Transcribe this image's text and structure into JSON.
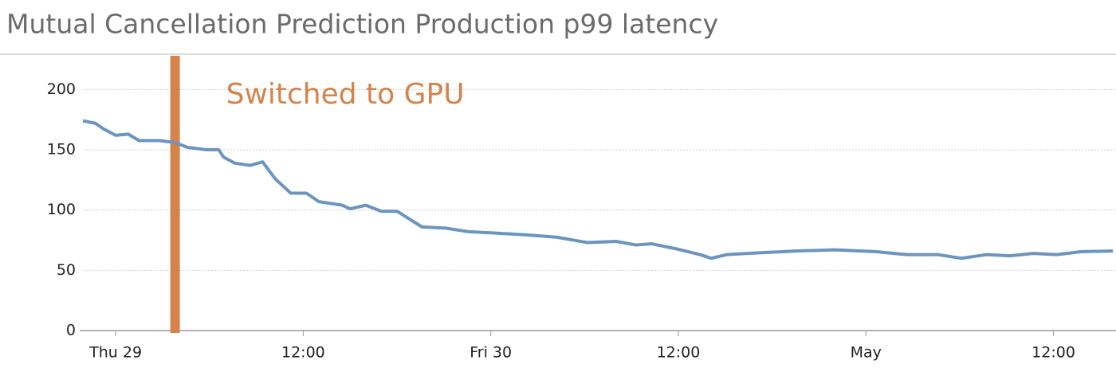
{
  "chart_data": {
    "type": "line",
    "title": "Mutual Cancellation Prediction Production p99 latency",
    "x": [
      -2.1,
      -1.3,
      -0.8,
      0,
      0.8,
      1.5,
      2.8,
      3.8,
      4.6,
      5.8,
      6.6,
      6.9,
      7.6,
      8.6,
      9.4,
      10.2,
      11.2,
      12.2,
      13,
      14.5,
      15,
      16,
      17,
      18,
      19.6,
      21.1,
      22.6,
      24.1,
      26.2,
      28.2,
      30.2,
      32,
      33.3,
      34.3,
      35.8,
      37.4,
      38.1,
      39.1,
      40.4,
      43.5,
      46,
      48.6,
      50.6,
      52.6,
      54.1,
      55.7,
      57.2,
      58.7,
      60.2,
      61.8,
      63.8
    ],
    "series": [
      {
        "color": "#6b95c0",
        "values": [
          174,
          172,
          167.5,
          162,
          163,
          157.6,
          157.6,
          156,
          152,
          150,
          150,
          144,
          139,
          137,
          140,
          126,
          114,
          114,
          107,
          104,
          101,
          104,
          99,
          99,
          86,
          85,
          82,
          81,
          79.5,
          77.5,
          73,
          74,
          71,
          72,
          68,
          63,
          60,
          63,
          64,
          66,
          67,
          65.5,
          63,
          63,
          60,
          63,
          62,
          64,
          63,
          65.5,
          66
        ]
      }
    ],
    "xlim": [
      -2.3,
      64
    ],
    "xticks": [
      {
        "value": 0,
        "label": "Thu 29"
      },
      {
        "value": 12,
        "label": "12:00"
      },
      {
        "value": 24,
        "label": "Fri 30"
      },
      {
        "value": 36,
        "label": "12:00"
      },
      {
        "value": 48,
        "label": "May"
      },
      {
        "value": 60,
        "label": "12:00"
      }
    ],
    "ylim": [
      0,
      228
    ],
    "yticks": [
      0,
      50,
      100,
      150,
      200
    ],
    "grid": true,
    "annotations": [
      {
        "x": 3.8,
        "label": "Switched to GPU",
        "color": "#d4834a"
      }
    ]
  }
}
